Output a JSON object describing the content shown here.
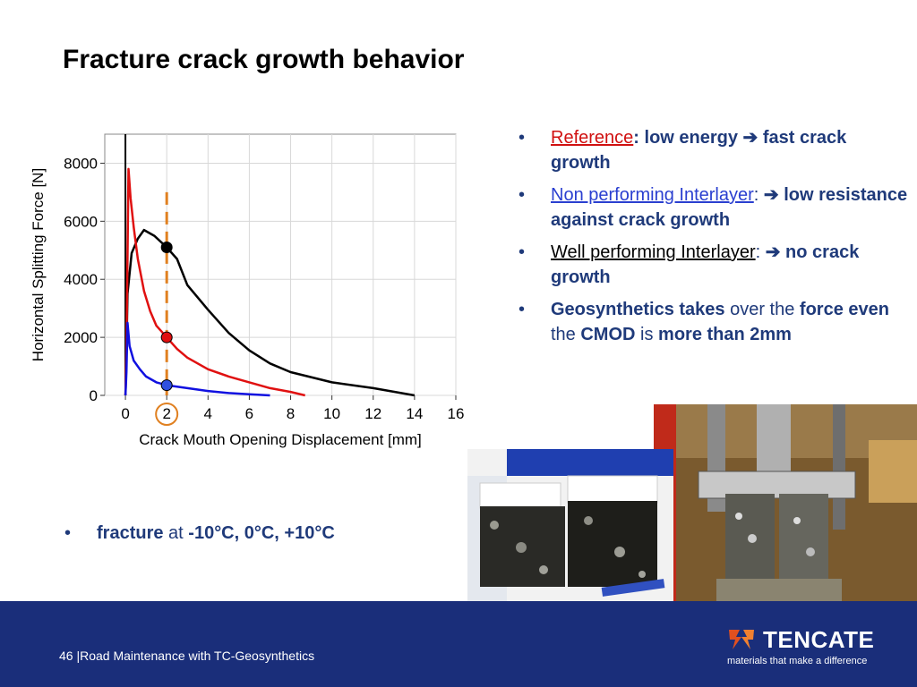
{
  "slide": {
    "title": "Fracture crack growth behavior"
  },
  "bullets": [
    {
      "label": "Reference",
      "sep": ":",
      "rest_bold": "low energy ➔ fast crack growth"
    },
    {
      "label": "Non performing Interlayer",
      "sep": ":",
      "rest_bold": "➔ low resistance against crack growth"
    },
    {
      "label": "Well performing Interlayer",
      "sep": ":",
      "rest_bold": "➔ no crack growth"
    },
    {
      "p1": "Geosynthetics takes",
      "p2": " over the ",
      "p3": "force even",
      "p4": " the ",
      "p5": "CMOD",
      "p6": " is ",
      "p7": "more than 2mm"
    }
  ],
  "fracture": {
    "bold": "fracture",
    "mid": " at ",
    "temps": "-10°C, 0°C, +10°C"
  },
  "footer": {
    "text": "46 |Road Maintenance with TC-Geosynthetics",
    "logo_name": "TENCATE",
    "logo_tagline": "materials that make a difference"
  },
  "colors": {
    "footer_bg": "#1a2e7a",
    "text_blue": "#1f3a7a",
    "reference_red": "#d01010",
    "nonperf_blue": "#2a3fd0"
  },
  "chart_data": {
    "type": "line",
    "xlabel": "Crack Mouth Opening Displacement [mm]",
    "ylabel": "Horizontal Splitting Force [N]",
    "xlim": [
      -1,
      16
    ],
    "ylim": [
      0,
      9000
    ],
    "xticks": [
      0,
      2,
      4,
      6,
      8,
      10,
      12,
      14,
      16
    ],
    "yticks": [
      0,
      2000,
      4000,
      6000,
      8000
    ],
    "highlight_x": 2,
    "series": [
      {
        "color": "#000000",
        "x": [
          0,
          0.05,
          0.1,
          0.3,
          0.6,
          0.9,
          1.4,
          2.0,
          2.5,
          3.0,
          4.0,
          5.0,
          6.0,
          7.0,
          8.0,
          10.0,
          12.0,
          14.0
        ],
        "y": [
          0,
          1500,
          3500,
          4900,
          5400,
          5700,
          5500,
          5100,
          4700,
          3800,
          2950,
          2150,
          1550,
          1100,
          800,
          450,
          250,
          0
        ]
      },
      {
        "color": "#e01010",
        "x": [
          0,
          0.05,
          0.15,
          0.25,
          0.4,
          0.6,
          0.9,
          1.2,
          1.5,
          2.0,
          2.5,
          3.0,
          4.0,
          5.0,
          6.0,
          7.0,
          8.0,
          8.7
        ],
        "y": [
          0,
          1500,
          7800,
          6800,
          5800,
          4700,
          3600,
          2900,
          2400,
          2000,
          1600,
          1300,
          900,
          650,
          450,
          250,
          120,
          0
        ]
      },
      {
        "color": "#1010e0",
        "x": [
          0,
          0.05,
          0.1,
          0.2,
          0.4,
          0.7,
          1.0,
          1.5,
          2.0,
          3.0,
          4.0,
          5.0,
          6.0,
          7.0
        ],
        "y": [
          0,
          800,
          2500,
          1700,
          1200,
          900,
          650,
          450,
          350,
          250,
          150,
          80,
          40,
          0
        ]
      }
    ],
    "markers": [
      {
        "x": 2,
        "y": 5100,
        "color": "#000000"
      },
      {
        "x": 2,
        "y": 2000,
        "color": "#e01010"
      },
      {
        "x": 2,
        "y": 350,
        "color": "#3050e0"
      }
    ]
  }
}
